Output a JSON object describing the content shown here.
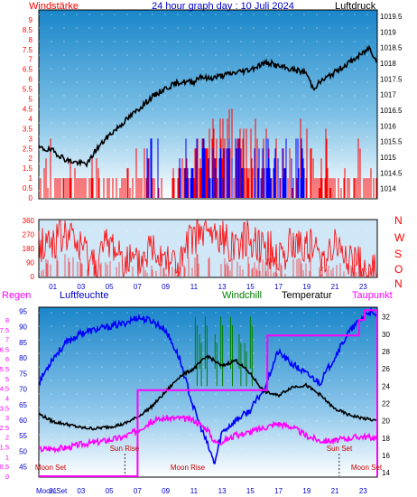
{
  "title": "24 hour graph day : 10 Juli 2024",
  "colors": {
    "wind": "#ff0000",
    "gust": "#0000ff",
    "pressure": "#000000",
    "humidity": "#0000ff",
    "windchill": "#008000",
    "temperature": "#000000",
    "dewpoint": "#ff00ff",
    "sky_top": "#1a86c9",
    "sky_bottom": "#ffffff"
  },
  "top_panel": {
    "left_label": "Windstärke",
    "right_label": "Luftdruck",
    "left_ticks": [
      "0",
      "0.5",
      "1",
      "1.5",
      "2",
      "2.5",
      "3",
      "3.5",
      "4",
      "4.5",
      "5",
      "5.5",
      "6",
      "6.5",
      "7",
      "7.5",
      "8",
      "8.5",
      "9"
    ],
    "right_ticks": [
      "1014",
      "1014.5",
      "1015",
      "1015.5",
      "1016",
      "1016.5",
      "1017",
      "1017.5",
      "1018",
      "1018.5",
      "1019",
      "1019.5"
    ]
  },
  "mid_panel": {
    "left_ticks": [
      "0",
      "90",
      "180",
      "270",
      "360"
    ],
    "right_labels": [
      "N",
      "W",
      "S",
      "O",
      "N"
    ],
    "hour_labels": [
      "01",
      "03",
      "05",
      "07",
      "09",
      "11",
      "13",
      "15",
      "17",
      "19",
      "21",
      "23"
    ]
  },
  "bottom_panel": {
    "regen_label": "Regen",
    "humidity_label": "Luftfeuchte",
    "windchill_label": "Windchill",
    "temperature_label": "Temperatur",
    "dewpoint_label": "Taupunkt",
    "regen_ticks": [
      "0",
      "0.5",
      "1",
      "1.5",
      "2",
      "2.5",
      "3",
      "3.5",
      "4",
      "4.5",
      "5",
      "5.5",
      "6",
      "6.5",
      "7",
      "7.5",
      "8"
    ],
    "humidity_ticks": [
      "45",
      "50",
      "55",
      "60",
      "65",
      "70",
      "75",
      "80",
      "85",
      "90",
      "95"
    ],
    "temp_ticks": [
      "14",
      "16",
      "18",
      "20",
      "22",
      "24",
      "26",
      "28",
      "30",
      "32"
    ],
    "hour_labels": [
      "01",
      "03",
      "05",
      "07",
      "09",
      "11",
      "13",
      "15",
      "17",
      "19",
      "21",
      "23"
    ],
    "annotations": {
      "sun_rise": "Sun Rise",
      "sun_set": "Sun Set",
      "moon_rise": "Moon Rise",
      "moon_set_left": "Moon Set",
      "moon_set_right": "Moon Set",
      "moon_start": "Moon Set"
    }
  },
  "chart_data": [
    {
      "type": "line",
      "title": "24 hour graph day : 10 Juli 2024",
      "xlabel": "",
      "x_range": [
        0,
        24
      ],
      "series": [
        {
          "name": "Luftdruck",
          "axis": "right",
          "unit": "hPa",
          "x": [
            0,
            1,
            2,
            3,
            3.5,
            4,
            5,
            6,
            7,
            8,
            9,
            10,
            11,
            11.5,
            12,
            13,
            14,
            15,
            16,
            16.5,
            17,
            18,
            19,
            19.5,
            20,
            21,
            22,
            23,
            23.5,
            24
          ],
          "values": [
            1015.3,
            1015.2,
            1014.9,
            1014.8,
            1014.8,
            1015.2,
            1015.7,
            1016.1,
            1016.5,
            1016.9,
            1017.2,
            1017.4,
            1017.4,
            1017.6,
            1017.5,
            1017.6,
            1017.7,
            1017.8,
            1018.0,
            1018.0,
            1017.9,
            1017.8,
            1017.7,
            1017.2,
            1017.4,
            1017.7,
            1018.0,
            1018.3,
            1018.5,
            1018.1
          ]
        },
        {
          "name": "Windstärke",
          "axis": "left",
          "unit": "",
          "x": [
            0,
            1,
            2,
            3,
            4,
            5,
            6,
            7,
            8,
            9,
            10,
            11,
            11.5,
            12,
            12.5,
            13,
            13.5,
            14,
            14.5,
            15,
            15.5,
            16,
            17,
            18,
            19,
            19.5,
            20,
            21,
            22,
            23,
            24
          ],
          "values": [
            1,
            1.5,
            1,
            1.5,
            1,
            1.5,
            0.5,
            1.5,
            1,
            1.5,
            1.5,
            2,
            3,
            4,
            3,
            3.5,
            3,
            3.5,
            2.5,
            3,
            2.5,
            2,
            1.5,
            2,
            2.5,
            1.5,
            2,
            1.5,
            1,
            1.5,
            1
          ]
        }
      ],
      "ylim_left": [
        0,
        9.5
      ],
      "ylim_right": [
        1013.7,
        1019.7
      ]
    },
    {
      "type": "scatter",
      "title": "",
      "series": [
        {
          "name": "",
          "x": [
            0,
            1,
            2,
            3,
            4,
            5,
            6,
            7,
            8,
            9,
            10,
            11,
            12,
            13,
            14,
            15,
            16,
            17,
            18,
            19,
            20,
            21,
            22,
            23,
            24
          ],
          "values": [
            200,
            230,
            270,
            180,
            90,
            220,
            130,
            60,
            200,
            150,
            60,
            270,
            270,
            240,
            210,
            260,
            200,
            130,
            200,
            220,
            120,
            200,
            110,
            50,
            20
          ]
        }
      ],
      "ylim": [
        0,
        360
      ]
    },
    {
      "type": "line",
      "title": "",
      "series": [
        {
          "name": "Luftfeuchte",
          "axis": "humidity",
          "x": [
            0,
            1,
            2,
            3,
            4,
            5,
            6,
            7,
            8,
            9,
            10,
            11,
            12,
            12.5,
            13,
            14,
            15,
            16,
            17,
            18,
            19,
            20,
            21,
            22,
            23,
            23.5,
            24
          ],
          "values": [
            72,
            80,
            85,
            88,
            89,
            90,
            91,
            93,
            92,
            89,
            80,
            64,
            52,
            46,
            56,
            60,
            63,
            70,
            82,
            78,
            75,
            72,
            80,
            88,
            93,
            95,
            93
          ]
        },
        {
          "name": "Temperatur",
          "axis": "temp",
          "x": [
            0,
            1,
            2,
            3,
            4,
            5,
            6,
            7,
            8,
            9,
            10,
            11,
            12,
            13,
            14,
            15,
            16,
            17,
            18,
            19,
            20,
            21,
            22,
            23,
            24
          ],
          "values": [
            20.8,
            19.9,
            19.6,
            19.2,
            19.1,
            19.3,
            19.6,
            20.4,
            21.6,
            23.3,
            25.1,
            26.0,
            27.5,
            26.3,
            27.0,
            25.5,
            23.4,
            22.9,
            23.9,
            24.1,
            23.0,
            21.4,
            20.7,
            20.3,
            20.0
          ]
        },
        {
          "name": "Taupunkt",
          "axis": "temp",
          "x": [
            0,
            1,
            2,
            3,
            4,
            5,
            6,
            7,
            8,
            9,
            10,
            11,
            12,
            12.5,
            13,
            14,
            15,
            16,
            17,
            18,
            19,
            20,
            21,
            22,
            23,
            24
          ],
          "values": [
            16.7,
            16.8,
            16.9,
            17.3,
            17.5,
            17.8,
            18.1,
            18.9,
            19.9,
            20.3,
            20.3,
            20.1,
            19.0,
            17.5,
            17.6,
            18.3,
            18.7,
            19.2,
            19.7,
            19.3,
            18.3,
            17.7,
            17.7,
            18.0,
            18.2,
            18.0
          ]
        },
        {
          "name": "Windchill",
          "axis": "temp",
          "x": [
            11.1,
            11.4,
            11.8,
            12.5,
            12.9,
            13.6,
            14.2,
            14.6,
            15.0
          ],
          "values": [
            32.0,
            30.0,
            32.0,
            30.0,
            32.0,
            32.0,
            30.0,
            29.0,
            32.0
          ]
        },
        {
          "name": "Regen",
          "axis": "regen",
          "x": [
            0,
            7,
            7.01,
            15.2,
            16.2,
            16.21,
            22.7,
            22.71,
            23.1,
            23.11,
            24
          ],
          "values": [
            0,
            0,
            4.4,
            4.4,
            4.4,
            7.2,
            7.2,
            8.0,
            8.0,
            8.5,
            8.5
          ]
        }
      ],
      "ylim_humidity": [
        42,
        96
      ],
      "ylim_temp": [
        13.6,
        33.0
      ],
      "ylim_regen": [
        0,
        8.6
      ]
    }
  ]
}
